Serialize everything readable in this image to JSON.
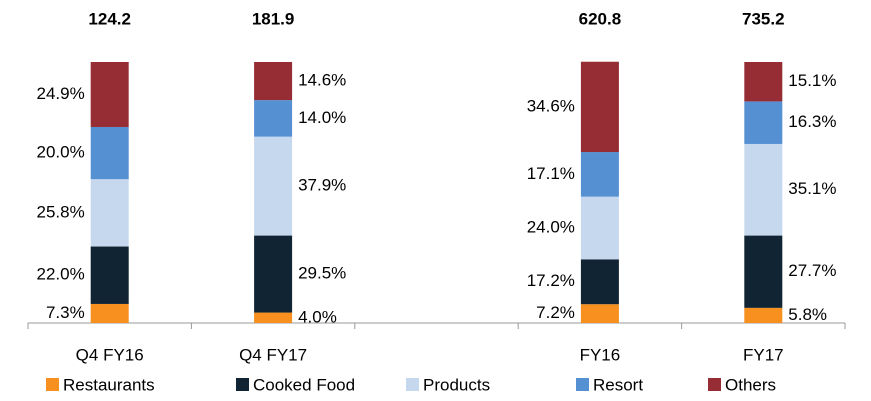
{
  "chart_data": {
    "type": "stacked-bar-100",
    "categories": [
      "Q4 FY16",
      "Q4 FY17",
      null,
      "FY16",
      "FY17"
    ],
    "totals": [
      124.2,
      181.9,
      null,
      620.8,
      735.2
    ],
    "ylim": [
      0,
      100
    ],
    "series": [
      {
        "name": "Restaurants",
        "color": "#f7901e",
        "values": [
          7.3,
          4.0,
          null,
          7.2,
          5.8
        ],
        "value_labels": [
          "7.3%",
          "4.0%",
          null,
          "7.2%",
          "5.8%"
        ]
      },
      {
        "name": "Cooked Food",
        "color": "#112433",
        "values": [
          22.0,
          29.5,
          null,
          17.2,
          27.7
        ],
        "value_labels": [
          "22.0%",
          "29.5%",
          null,
          "17.2%",
          "27.7%"
        ]
      },
      {
        "name": "Products",
        "color": "#c6d8ee",
        "values": [
          25.8,
          37.9,
          null,
          24.0,
          35.1
        ],
        "value_labels": [
          "25.8%",
          "37.9%",
          null,
          "24.0%",
          "35.1%"
        ]
      },
      {
        "name": "Resort",
        "color": "#5590d3",
        "values": [
          20.0,
          14.0,
          null,
          17.1,
          16.3
        ],
        "value_labels": [
          "20.0%",
          "14.0%",
          null,
          "17.1%",
          "16.3%"
        ]
      },
      {
        "name": "Others",
        "color": "#962d34",
        "values": [
          24.9,
          14.6,
          null,
          34.6,
          15.1
        ],
        "value_labels": [
          "24.9%",
          "14.6%",
          null,
          "34.6%",
          "15.1%"
        ]
      }
    ]
  }
}
